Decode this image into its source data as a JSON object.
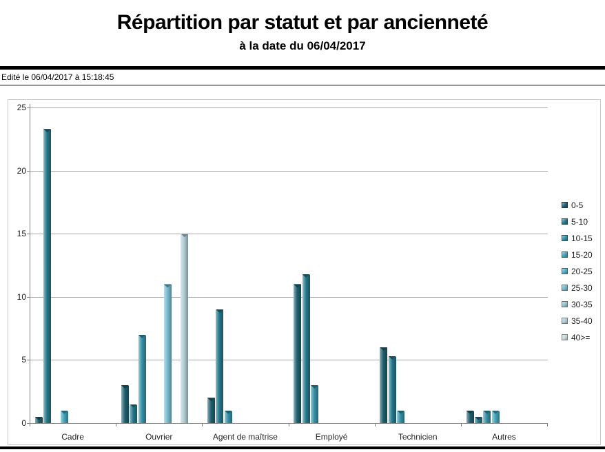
{
  "header": {
    "title": "Répartition par statut et par ancienneté",
    "subtitle": "à la date du 06/04/2017",
    "edited_line": "Edité le 06/04/2017 à 15:18:45"
  },
  "chart_data": {
    "type": "bar",
    "title": "Répartition par statut et par ancienneté",
    "subtitle": "à la date du 06/04/2017",
    "categories": [
      "Cadre",
      "Ouvrier",
      "Agent de maîtrise",
      "Employé",
      "Technicien",
      "Autres"
    ],
    "series": [
      {
        "name": "0-5",
        "color": "#1E5F6E",
        "values": [
          0.5,
          3,
          2,
          11,
          6,
          1
        ]
      },
      {
        "name": "5-10",
        "color": "#23768A",
        "values": [
          23.3,
          1.5,
          9,
          11.8,
          5.3,
          0.5
        ]
      },
      {
        "name": "10-15",
        "color": "#338FA5",
        "values": [
          0,
          7,
          1,
          3,
          1,
          1
        ]
      },
      {
        "name": "15-20",
        "color": "#41A1B7",
        "values": [
          1,
          0,
          0,
          0,
          0,
          1
        ]
      },
      {
        "name": "20-25",
        "color": "#52ACC2",
        "values": [
          0,
          0,
          0,
          0,
          0,
          0
        ]
      },
      {
        "name": "25-30",
        "color": "#74B9CC",
        "values": [
          0,
          11,
          0,
          0,
          0,
          0
        ]
      },
      {
        "name": "30-35",
        "color": "#95C0CD",
        "values": [
          0,
          0,
          0,
          0,
          0,
          0
        ]
      },
      {
        "name": "35-40",
        "color": "#AFCBD4",
        "values": [
          0,
          15,
          0,
          0,
          0,
          0
        ]
      },
      {
        "name": "40>=",
        "color": "#CAD7DB",
        "values": [
          0,
          0,
          0,
          0,
          0,
          0
        ]
      }
    ],
    "ylim": [
      0,
      25
    ],
    "yticks": [
      0,
      5,
      10,
      15,
      20,
      25
    ],
    "grid": true,
    "legend_position": "right",
    "axis_color": "#808080",
    "grid_color": "#A6A6A6"
  }
}
